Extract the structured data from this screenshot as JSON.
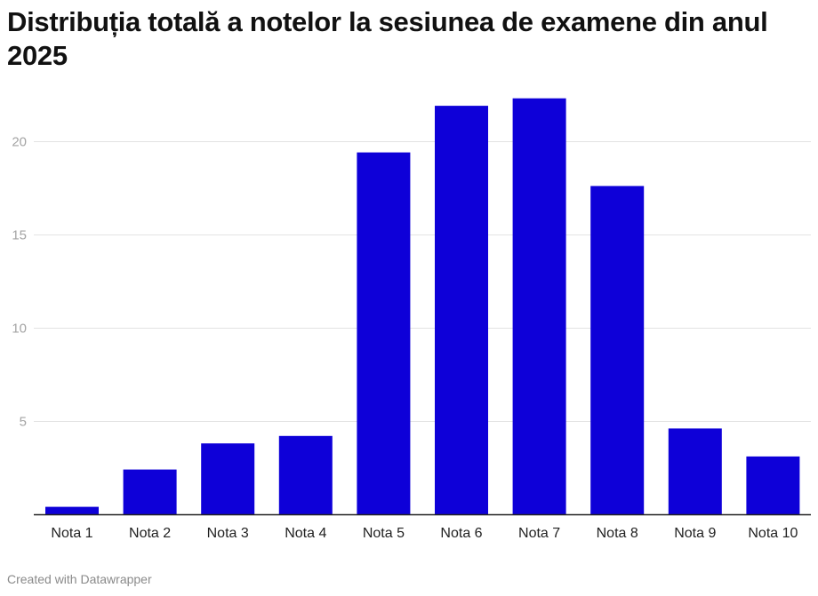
{
  "chart_data": {
    "type": "bar",
    "title": "Distribuția totală a notelor la sesiunea de examene din anul 2025",
    "categories": [
      "Nota 1",
      "Nota 2",
      "Nota 3",
      "Nota 4",
      "Nota 5",
      "Nota 6",
      "Nota 7",
      "Nota 8",
      "Nota 9",
      "Nota 10"
    ],
    "values": [
      0.4,
      2.4,
      3.8,
      4.2,
      19.4,
      21.9,
      22.3,
      17.6,
      4.6,
      3.1
    ],
    "yticks": [
      5,
      10,
      15,
      20
    ],
    "ylim": [
      0,
      23
    ],
    "grid": true,
    "bar_color": "#0e00d8"
  },
  "footer": {
    "credit": "Created with Datawrapper"
  }
}
